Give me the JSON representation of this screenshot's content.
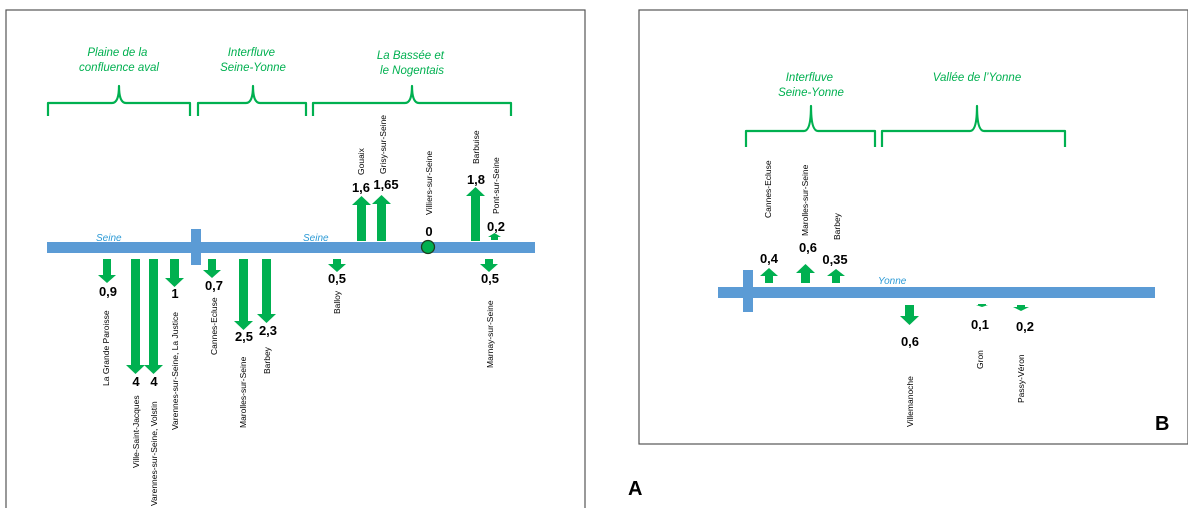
{
  "panels": {
    "A": {
      "label": "A",
      "rivers": [
        {
          "name": "Seine"
        },
        {
          "name": "Seine"
        }
      ],
      "regions": [
        {
          "lines": [
            "Plaine de la",
            "confluence aval"
          ]
        },
        {
          "lines": [
            "Interfluve",
            "Seine-Yonne"
          ]
        },
        {
          "lines": [
            "La Bassée et",
            "le Nogentais"
          ]
        }
      ],
      "sites": [
        {
          "name": "La Grande Paroisse",
          "value": "0,9"
        },
        {
          "name": "Ville-Saint-Jacques",
          "value": "4"
        },
        {
          "name": "Varennes-sur-Seine, Volstin",
          "value": "4"
        },
        {
          "name": "Varennes-sur-Seine, La Justice",
          "value": "1"
        },
        {
          "name": "Cannes-Ecluse",
          "value": "0,7"
        },
        {
          "name": "Marolles-sur-Seine",
          "value": "2,5"
        },
        {
          "name": "Barbey",
          "value": "2,3"
        },
        {
          "name": "Balloy",
          "value": "0,5"
        },
        {
          "name": "Gouaix",
          "value": "1,6"
        },
        {
          "name": "Grisy-sur-Seine",
          "value": "1,65"
        },
        {
          "name": "Villiers-sur-Seine",
          "value": "0"
        },
        {
          "name": "Barbuise",
          "value": "1,8"
        },
        {
          "name": "Pont-sur-Seine",
          "value": "0,2"
        },
        {
          "name": "Marnay-sur-Seine",
          "value": "0,5"
        }
      ]
    },
    "B": {
      "label": "B",
      "rivers": [
        {
          "name": "Yonne"
        }
      ],
      "regions": [
        {
          "lines": [
            "Interfluve",
            "Seine-Yonne"
          ]
        },
        {
          "lines": [
            "Vallée de l’Yonne"
          ]
        }
      ],
      "sites": [
        {
          "name": "Cannes-Ecluse",
          "value": "0,4"
        },
        {
          "name": "Marolles-sur-Seine",
          "value": "0,6"
        },
        {
          "name": "Barbey",
          "value": "0,35"
        },
        {
          "name": "Villemanoche",
          "value": "0,6"
        },
        {
          "name": "Gron",
          "value": "0,1"
        },
        {
          "name": "Passy-Véron",
          "value": "0,2"
        }
      ]
    }
  },
  "colors": {
    "river": "#5b9bd5",
    "arrow": "#00b050",
    "region_text": "#00b050",
    "river_label": "#2e9bd6"
  }
}
